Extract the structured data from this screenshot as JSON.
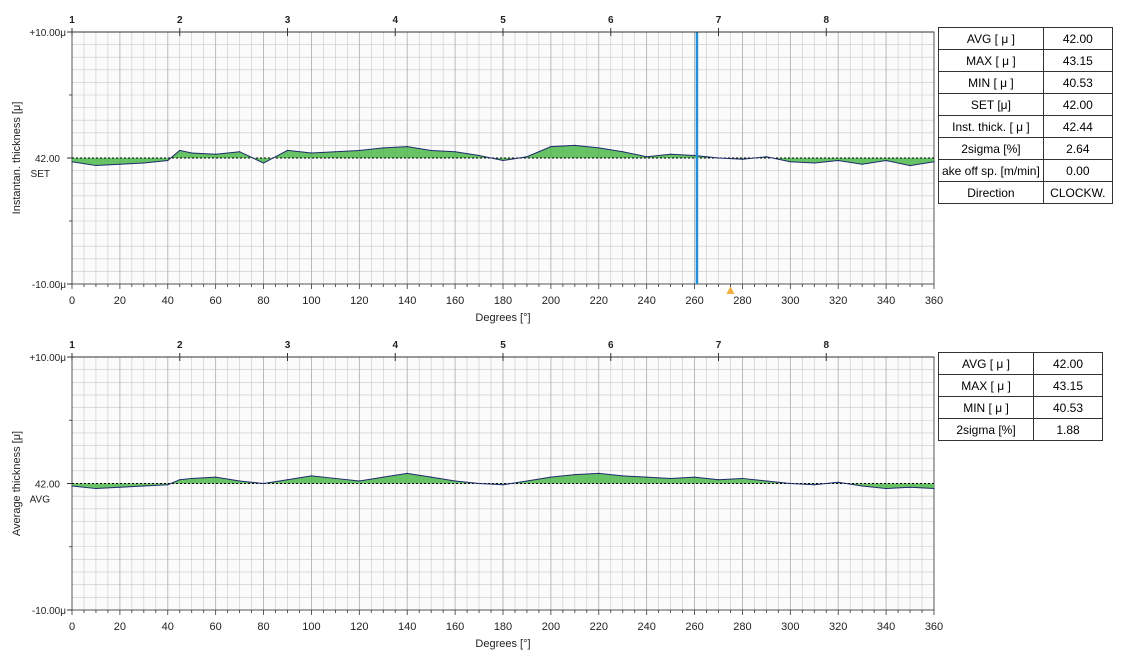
{
  "colors": {
    "grid": "#c8c8c8",
    "measured_line": "#1f2a6b",
    "deviation_fill": "#4cb84a",
    "reference": "#000000",
    "cursor": "#1f8fd8",
    "marker": "#f0b040"
  },
  "panel_top": {
    "tables": [
      {
        "label": "AVG [ μ ]",
        "value": "42.00"
      },
      {
        "label": "MAX [ μ ]",
        "value": "43.15"
      },
      {
        "label": "MIN [ μ ]",
        "value": "40.53"
      },
      {
        "label": "SET [μ]",
        "value": "42.00"
      },
      {
        "label": "Inst. thick. [ μ ]",
        "value": "42.44"
      },
      {
        "label": "2sigma [%]",
        "value": "2.64"
      },
      {
        "label": "ake off sp. [m/min]",
        "value": "0.00"
      },
      {
        "label": "Direction",
        "value": "CLOCKW."
      }
    ]
  },
  "panel_bottom": {
    "tables": [
      {
        "label": "AVG [ μ ]",
        "value": "42.00"
      },
      {
        "label": "MAX [ μ ]",
        "value": "43.15"
      },
      {
        "label": "MIN [ μ ]",
        "value": "40.53"
      },
      {
        "label": "2sigma [%]",
        "value": "1.88"
      }
    ]
  },
  "chart_data": [
    {
      "type": "line",
      "ylabel": "Instantan. thickness [μ]",
      "xlabel": "Degrees [°]",
      "xlim": [
        0,
        360
      ],
      "x_ticks": [
        "0",
        "20",
        "40",
        "60",
        "80",
        "100",
        "120",
        "140",
        "160",
        "180",
        "200",
        "220",
        "240",
        "260",
        "280",
        "300",
        "320",
        "340",
        "360"
      ],
      "ylim": [
        -10,
        10
      ],
      "y_tick_labels": [
        "+10.00μ",
        "42.00",
        "-10.00μ"
      ],
      "reference_label": "SET",
      "top_ticks": [
        "1",
        "2",
        "3",
        "4",
        "5",
        "6",
        "7",
        "8"
      ],
      "top_tick_positions": [
        0,
        45,
        90,
        135,
        180,
        225,
        270,
        315
      ],
      "cursor_x": 261,
      "marker_x": 275,
      "series": [
        {
          "x": [
            0,
            10,
            20,
            30,
            40,
            45,
            50,
            60,
            70,
            80,
            90,
            100,
            110,
            120,
            130,
            140,
            150,
            160,
            170,
            180,
            190,
            200,
            210,
            220,
            230,
            240,
            250,
            260,
            270,
            280,
            290,
            300,
            310,
            320,
            330,
            340,
            350,
            360
          ],
          "y": [
            -0.3,
            -0.6,
            -0.5,
            -0.4,
            -0.2,
            0.6,
            0.4,
            0.3,
            0.5,
            -0.4,
            0.6,
            0.4,
            0.5,
            0.6,
            0.8,
            0.9,
            0.6,
            0.5,
            0.2,
            -0.2,
            0.1,
            0.9,
            1.0,
            0.8,
            0.5,
            0.1,
            0.3,
            0.2,
            0.0,
            -0.1,
            0.1,
            -0.3,
            -0.4,
            -0.2,
            -0.5,
            -0.2,
            -0.6,
            -0.3
          ]
        }
      ]
    },
    {
      "type": "line",
      "ylabel": "Average thickness [μ]",
      "xlabel": "Degrees [°]",
      "xlim": [
        0,
        360
      ],
      "x_ticks": [
        "0",
        "20",
        "40",
        "60",
        "80",
        "100",
        "120",
        "140",
        "160",
        "180",
        "200",
        "220",
        "240",
        "260",
        "280",
        "300",
        "320",
        "340",
        "360"
      ],
      "ylim": [
        -10,
        10
      ],
      "y_tick_labels": [
        "+10.00μ",
        "42.00",
        "-10.00μ"
      ],
      "reference_label": "AVG",
      "top_ticks": [
        "1",
        "2",
        "3",
        "4",
        "5",
        "6",
        "7",
        "8"
      ],
      "top_tick_positions": [
        0,
        45,
        90,
        135,
        180,
        225,
        270,
        315
      ],
      "series": [
        {
          "x": [
            0,
            10,
            20,
            30,
            40,
            45,
            50,
            60,
            70,
            80,
            90,
            100,
            110,
            120,
            130,
            140,
            150,
            160,
            170,
            180,
            190,
            200,
            210,
            220,
            230,
            240,
            250,
            260,
            270,
            280,
            290,
            300,
            310,
            320,
            330,
            340,
            350,
            360
          ],
          "y": [
            -0.2,
            -0.4,
            -0.3,
            -0.2,
            -0.1,
            0.3,
            0.4,
            0.5,
            0.2,
            0.0,
            0.3,
            0.6,
            0.4,
            0.2,
            0.5,
            0.8,
            0.5,
            0.2,
            0.0,
            -0.1,
            0.2,
            0.5,
            0.7,
            0.8,
            0.6,
            0.5,
            0.4,
            0.5,
            0.3,
            0.4,
            0.2,
            0.0,
            -0.1,
            0.1,
            -0.2,
            -0.4,
            -0.3,
            -0.4
          ]
        }
      ]
    }
  ]
}
